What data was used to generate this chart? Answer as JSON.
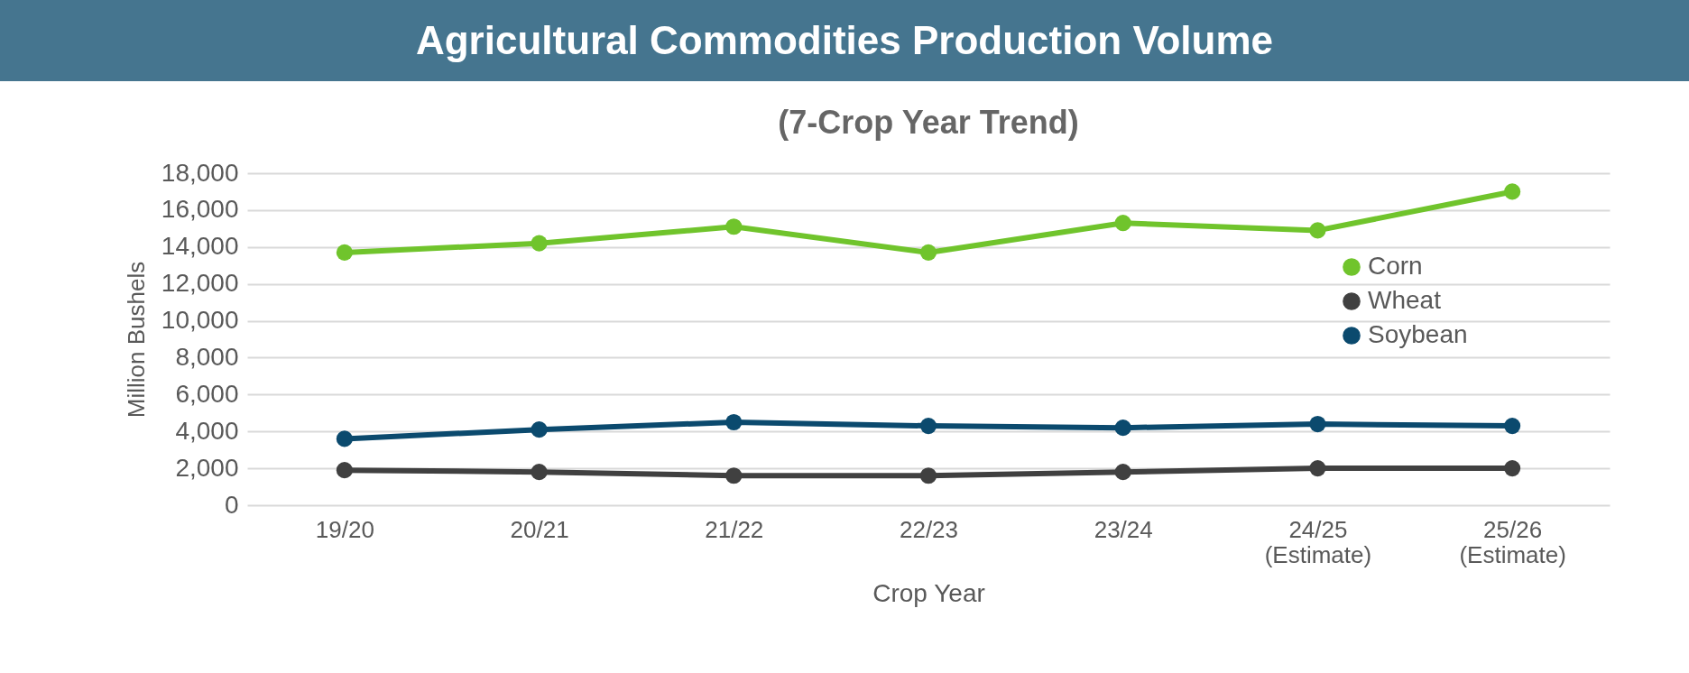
{
  "chart_data": {
    "type": "line",
    "title": "Agricultural Commodities Production Volume",
    "subtitle": "(7-Crop Year Trend)",
    "xlabel": "Crop Year",
    "ylabel": "Million Bushels",
    "categories": [
      "19/20",
      "20/21",
      "21/22",
      "22/23",
      "23/24",
      "24/25\n(Estimate)",
      "25/26\n(Estimate)"
    ],
    "series": [
      {
        "name": "Corn",
        "color": "#70c42c",
        "values": [
          13700,
          14200,
          15100,
          13700,
          15300,
          14900,
          17000
        ]
      },
      {
        "name": "Wheat",
        "color": "#404040",
        "values": [
          1900,
          1800,
          1600,
          1600,
          1800,
          2000,
          2000
        ]
      },
      {
        "name": "Soybean",
        "color": "#0b4a6e",
        "values": [
          3600,
          4100,
          4500,
          4300,
          4200,
          4400,
          4300
        ]
      }
    ],
    "ylim": [
      0,
      18000
    ],
    "yticks": [
      0,
      {
        "value": 2000,
        "label": "2,000"
      },
      {
        "value": 4000,
        "label": "4,000"
      },
      {
        "value": 6000,
        "label": "6,000"
      },
      {
        "value": 8000,
        "label": "8,000"
      },
      {
        "value": 10000,
        "label": "10,000"
      },
      {
        "value": 12000,
        "label": "12,000"
      },
      {
        "value": 14000,
        "label": "14,000"
      },
      {
        "value": 16000,
        "label": "16,000"
      },
      {
        "value": 18000,
        "label": "18,000"
      }
    ],
    "grid": "y",
    "legend": "right",
    "marker": "circle",
    "line_style": "solid"
  }
}
